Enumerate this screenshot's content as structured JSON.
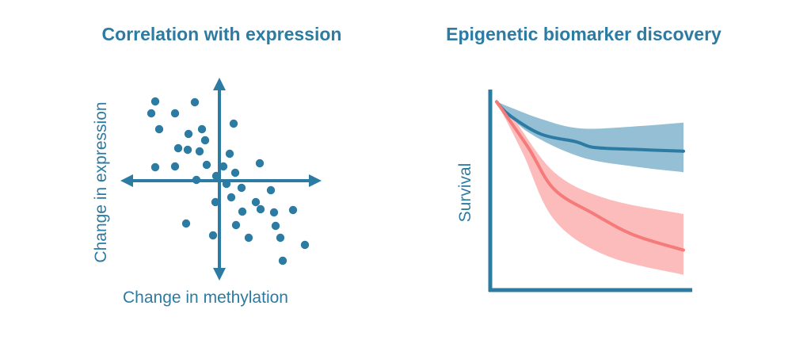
{
  "colors": {
    "primary": "#2c7ba3",
    "blue_band": "#94bfd4",
    "red_line": "#f57a7a",
    "red_band": "#fdbcbc"
  },
  "chart_data": [
    {
      "type": "scatter",
      "title": "Correlation with expression",
      "xlabel": "Change in methylation",
      "ylabel": "Change in expression",
      "xlim": [
        -120,
        120
      ],
      "ylim": [
        -120,
        120
      ],
      "points": [
        [
          -81,
          100
        ],
        [
          -31,
          99
        ],
        [
          -86,
          85
        ],
        [
          -56,
          85
        ],
        [
          18,
          72
        ],
        [
          -76,
          65
        ],
        [
          -22,
          65
        ],
        [
          -39,
          59
        ],
        [
          -18,
          51
        ],
        [
          -52,
          41
        ],
        [
          -40,
          39
        ],
        [
          -25,
          37
        ],
        [
          13,
          34
        ],
        [
          -81,
          17
        ],
        [
          -56,
          18
        ],
        [
          -16,
          20
        ],
        [
          5,
          18
        ],
        [
          51,
          22
        ],
        [
          20,
          10
        ],
        [
          -4,
          6
        ],
        [
          -29,
          1
        ],
        [
          9,
          -4
        ],
        [
          28,
          -9
        ],
        [
          65,
          -12
        ],
        [
          15,
          -21
        ],
        [
          -5,
          -27
        ],
        [
          46,
          -27
        ],
        [
          29,
          -39
        ],
        [
          52,
          -36
        ],
        [
          69,
          -40
        ],
        [
          93,
          -37
        ],
        [
          -42,
          -54
        ],
        [
          21,
          -56
        ],
        [
          71,
          -57
        ],
        [
          -8,
          -69
        ],
        [
          37,
          -72
        ],
        [
          77,
          -72
        ],
        [
          108,
          -81
        ],
        [
          80,
          -101
        ]
      ]
    },
    {
      "type": "line",
      "title": "Epigenetic biomarker discovery",
      "xlabel": "",
      "ylabel": "Survival",
      "xlim": [
        0,
        10
      ],
      "ylim": [
        0,
        1
      ],
      "series": [
        {
          "name": "blue",
          "x": [
            0,
            0.68,
            2.37,
            4.24,
            5.21,
            7.33,
            10
          ],
          "y": [
            0.99,
            0.92,
            0.82,
            0.78,
            0.75,
            0.74,
            0.73
          ],
          "band_upper": {
            "x": [
              0,
              2.37,
              4.49,
              7.33,
              10
            ],
            "y": [
              0.99,
              0.9,
              0.85,
              0.86,
              0.88
            ]
          },
          "band_lower": {
            "x": [
              0,
              1.69,
              4.49,
              7.33,
              10
            ],
            "y": [
              0.99,
              0.83,
              0.7,
              0.65,
              0.62
            ]
          }
        },
        {
          "name": "red",
          "x": [
            0,
            1.69,
            3.08,
            5.21,
            7.33,
            10
          ],
          "y": [
            0.99,
            0.75,
            0.53,
            0.4,
            0.29,
            0.21
          ],
          "band_upper": {
            "x": [
              0,
              0.85,
              3.08,
              5.9,
              10
            ],
            "y": [
              0.99,
              0.91,
              0.62,
              0.48,
              0.4
            ]
          },
          "band_lower": {
            "x": [
              0,
              1.4,
              3.08,
              5.9,
              10
            ],
            "y": [
              0.99,
              0.72,
              0.37,
              0.18,
              0.08
            ]
          }
        }
      ]
    }
  ]
}
